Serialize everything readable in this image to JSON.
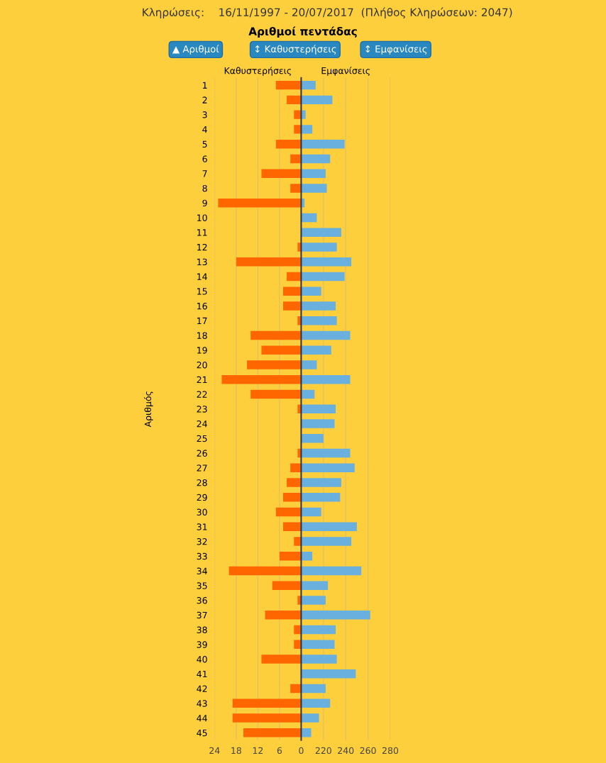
{
  "chart_data": [
    {
      "type": "bar",
      "orientation": "horizontal",
      "title": "Αριθμοί πεντάδας",
      "xlabel": "Καθυστερήσεις",
      "ylabel": "Αριθμός",
      "annotations": [
        "Κληρώσεις:    16/11/1997 - 20/07/2017  (Πλήθος Κληρώσεων: 2047)",
        "▲ Αριθμοί",
        "↕ Καθυστερήσεις",
        "↕ Εμφανίσεις"
      ],
      "categories": [
        "1",
        "2",
        "3",
        "4",
        "5",
        "6",
        "7",
        "8",
        "9",
        "10",
        "11",
        "12",
        "13",
        "14",
        "15",
        "16",
        "17",
        "18",
        "19",
        "20",
        "21",
        "22",
        "23",
        "24",
        "25",
        "26",
        "27",
        "28",
        "29",
        "30",
        "31",
        "32",
        "33",
        "34",
        "35",
        "36",
        "37",
        "38",
        "39",
        "40",
        "41",
        "42",
        "43",
        "44",
        "45"
      ],
      "values": [
        7,
        4,
        2,
        2,
        7,
        3,
        11,
        3,
        23,
        0,
        0,
        1,
        18,
        4,
        5,
        5,
        1,
        14,
        11,
        15,
        22,
        14,
        1,
        0,
        0,
        1,
        3,
        4,
        5,
        7,
        5,
        2,
        6,
        20,
        8,
        1,
        10,
        2,
        2,
        11,
        0,
        3,
        19,
        19,
        16
      ],
      "color": "#ff6600",
      "xlim": [
        24,
        0
      ],
      "xticks": [
        24,
        18,
        12,
        6,
        0
      ],
      "grid": "x"
    },
    {
      "type": "bar",
      "orientation": "horizontal",
      "xlabel": "Εμφανίσεις",
      "tick_labels": "x",
      "categories": [
        "1",
        "2",
        "3",
        "4",
        "5",
        "6",
        "7",
        "8",
        "9",
        "10",
        "11",
        "12",
        "13",
        "14",
        "15",
        "16",
        "17",
        "18",
        "19",
        "20",
        "21",
        "22",
        "23",
        "24",
        "25",
        "26",
        "27",
        "28",
        "29",
        "30",
        "31",
        "32",
        "33",
        "34",
        "35",
        "36",
        "37",
        "38",
        "39",
        "40",
        "41",
        "42",
        "43",
        "44",
        "45"
      ],
      "values": [
        213,
        228,
        204,
        210,
        239,
        226,
        222,
        223,
        203,
        214,
        236,
        232,
        245,
        239,
        218,
        231,
        232,
        244,
        227,
        214,
        244,
        212,
        231,
        230,
        220,
        244,
        248,
        236,
        235,
        218,
        250,
        245,
        210,
        254,
        224,
        222,
        262,
        231,
        230,
        232,
        249,
        222,
        226,
        216,
        209
      ],
      "color": "#6ab0de",
      "xlim": [
        200,
        280
      ],
      "xticks": [
        {
          "value": 200,
          "label": null
        },
        220,
        240,
        260,
        280
      ],
      "grid": "x"
    }
  ]
}
